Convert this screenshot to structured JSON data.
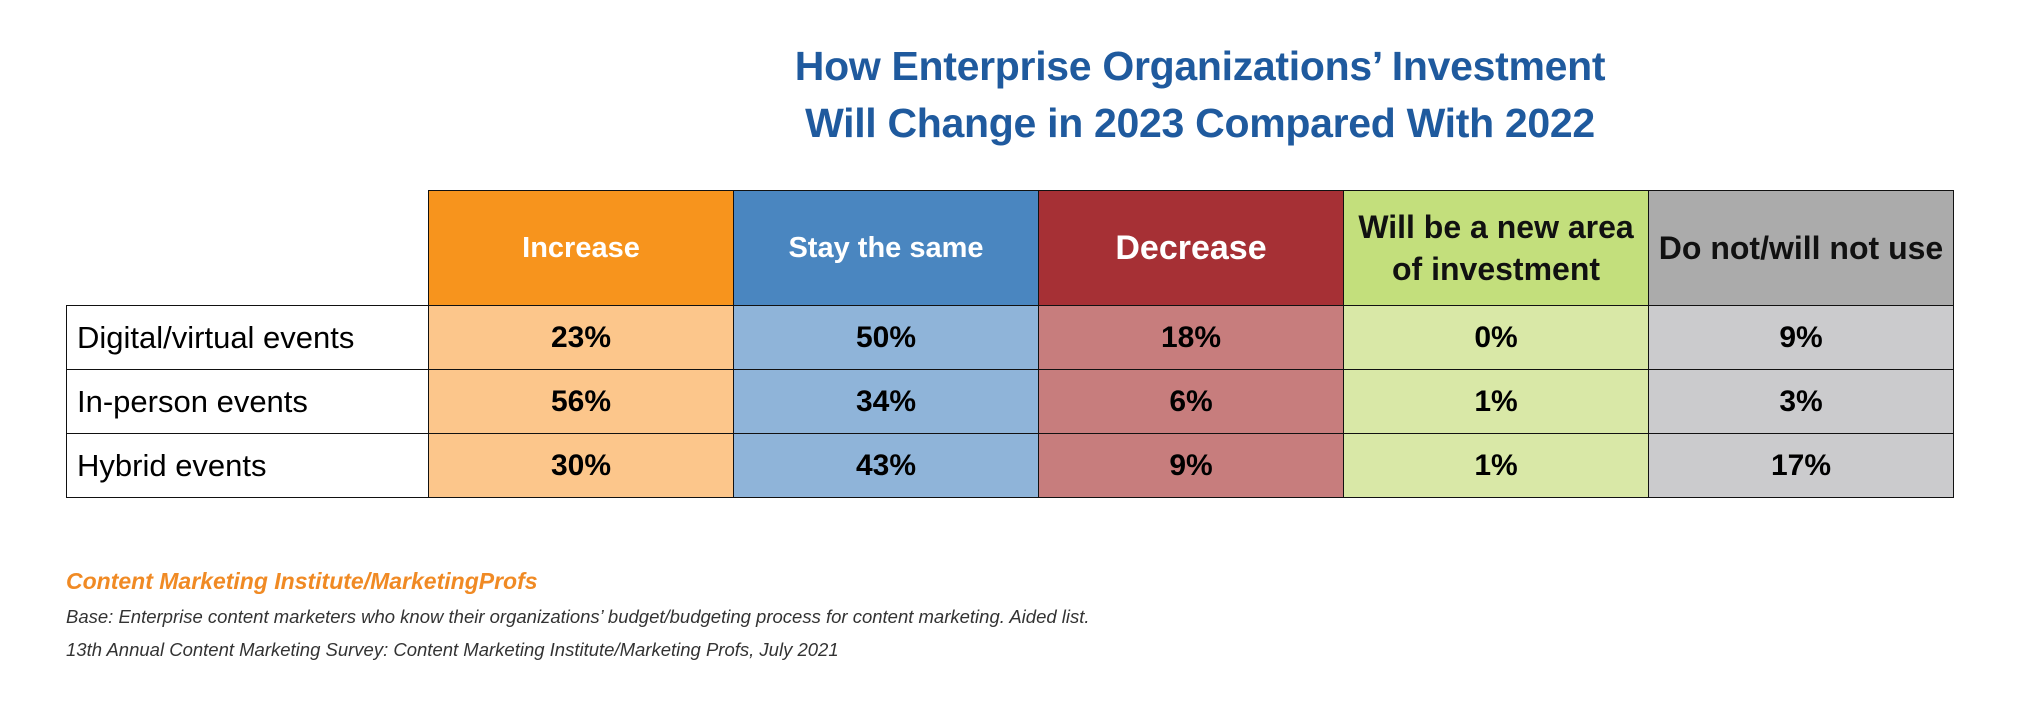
{
  "title_lines": [
    "How Enterprise Organizations’ Investment",
    "Will Change in 2023 Compared With 2022"
  ],
  "chart_data": {
    "type": "table",
    "columns": [
      {
        "label": "Increase",
        "header_color": "#f7941d",
        "cell_color": "#fcc68b",
        "text_color": "#ffffff"
      },
      {
        "label": "Stay the same",
        "header_color": "#4a86c0",
        "cell_color": "#8fb4d9",
        "text_color": "#ffffff"
      },
      {
        "label": "Decrease",
        "header_color": "#a63035",
        "cell_color": "#c77d7d",
        "text_color": "#ffffff"
      },
      {
        "label": "Will be a new area of investment",
        "header_color": "#c3df7c",
        "cell_color": "#d9e8a7",
        "text_color": "#111111"
      },
      {
        "label": "Do not/will not use",
        "header_color": "#ababab",
        "cell_color": "#cbcbcd",
        "text_color": "#111111"
      }
    ],
    "rows": [
      {
        "label": "Digital/virtual events",
        "values": [
          "23%",
          "50%",
          "18%",
          "0%",
          "9%"
        ]
      },
      {
        "label": "In-person events",
        "values": [
          "56%",
          "34%",
          "6%",
          "1%",
          "3%"
        ]
      },
      {
        "label": "Hybrid events",
        "values": [
          "30%",
          "43%",
          "9%",
          "1%",
          "17%"
        ]
      }
    ]
  },
  "footer": {
    "source": "Content Marketing Institute/MarketingProfs",
    "base": "Base: Enterprise content marketers who know their organizations’ budget/budgeting process for content marketing. Aided list.",
    "survey": "13th Annual Content Marketing Survey: Content Marketing Institute/Marketing Profs, July 2021"
  }
}
